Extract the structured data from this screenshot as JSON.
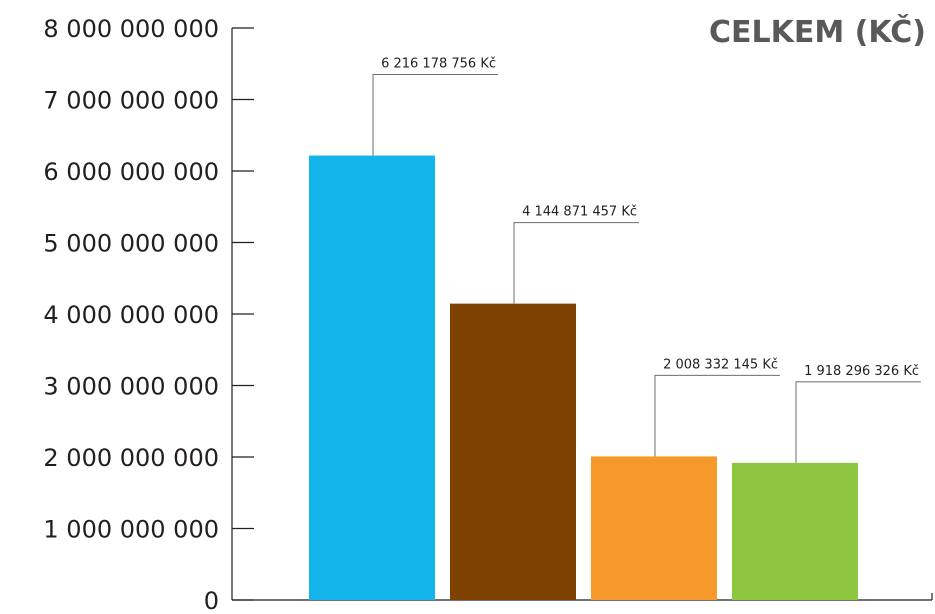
{
  "chart_data": {
    "type": "bar",
    "title": "CELKEM (KČ)",
    "xlabel": "",
    "ylabel": "",
    "ylim": [
      0,
      8000000000
    ],
    "yticks": [
      {
        "value": 0,
        "label": "0"
      },
      {
        "value": 1000000000,
        "label": "1 000 000 000"
      },
      {
        "value": 2000000000,
        "label": "2 000 000 000"
      },
      {
        "value": 3000000000,
        "label": "3 000 000 000"
      },
      {
        "value": 4000000000,
        "label": "4 000 000 000"
      },
      {
        "value": 5000000000,
        "label": "5 000 000 000"
      },
      {
        "value": 6000000000,
        "label": "6 000 000 000"
      },
      {
        "value": 7000000000,
        "label": "7 000 000 000"
      },
      {
        "value": 8000000000,
        "label": "8 000 000 000"
      }
    ],
    "grid": false,
    "legend": "none",
    "bars": [
      {
        "value": 6216178756,
        "label": "6 216 178 756 Kč",
        "color": "#13b5ea"
      },
      {
        "value": 4144871457,
        "label": "4 144 871 457 Kč",
        "color": "#7f4100"
      },
      {
        "value": 2008332145,
        "label": "2 008 332 145 Kč",
        "color": "#f7982a"
      },
      {
        "value": 1918296326,
        "label": "1 918 296 326 Kč",
        "color": "#8dc63f"
      }
    ]
  }
}
